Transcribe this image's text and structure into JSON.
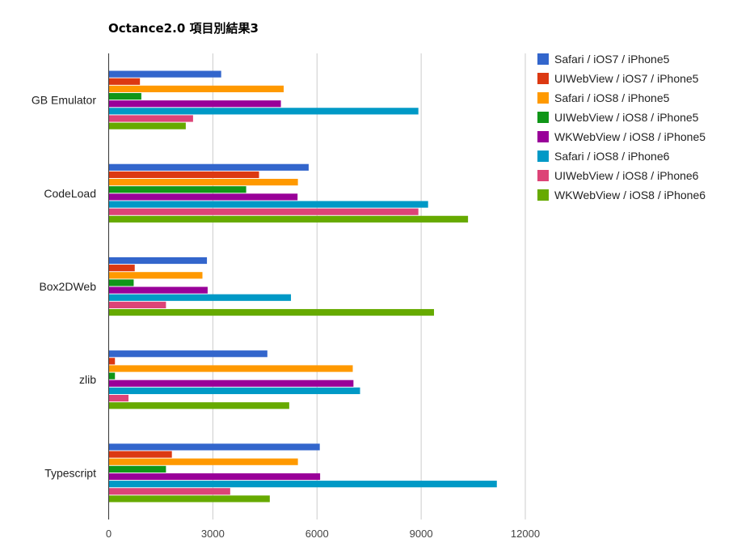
{
  "chart_data": {
    "type": "bar",
    "orientation": "horizontal",
    "title": "Octance2.0 項目別結果3",
    "categories": [
      "GB Emulator",
      "CodeLoad",
      "Box2DWeb",
      "zlib",
      "Typescript"
    ],
    "series": [
      {
        "name": "Safari / iOS7 / iPhone5",
        "color": "#3366cc",
        "values": [
          3240,
          5760,
          2830,
          4570,
          6080
        ]
      },
      {
        "name": "UIWebView / iOS7 / iPhone5",
        "color": "#dc3912",
        "values": [
          900,
          4330,
          750,
          180,
          1820
        ]
      },
      {
        "name": "Safari / iOS8 / iPhone5",
        "color": "#ff9900",
        "values": [
          5040,
          5450,
          2700,
          7030,
          5450
        ]
      },
      {
        "name": "UIWebView / iOS8 / iPhone5",
        "color": "#109618",
        "values": [
          940,
          3960,
          720,
          180,
          1650
        ]
      },
      {
        "name": "WKWebView / iOS8 / iPhone5",
        "color": "#990099",
        "values": [
          4960,
          5440,
          2850,
          7050,
          6090
        ]
      },
      {
        "name": "Safari / iOS8 / iPhone6",
        "color": "#0099c6",
        "values": [
          8920,
          9200,
          5250,
          7240,
          11180
        ]
      },
      {
        "name": "UIWebView / iOS8 / iPhone6",
        "color": "#dd4477",
        "values": [
          2430,
          8920,
          1650,
          570,
          3500
        ]
      },
      {
        "name": "WKWebView / iOS8 / iPhone6",
        "color": "#66aa00",
        "values": [
          2220,
          10350,
          9370,
          5200,
          4640
        ]
      }
    ],
    "xlim": [
      0,
      12000
    ],
    "xticks": [
      "0",
      "3000",
      "6000",
      "9000",
      "12000"
    ],
    "grid": true,
    "legend_position": "right"
  }
}
